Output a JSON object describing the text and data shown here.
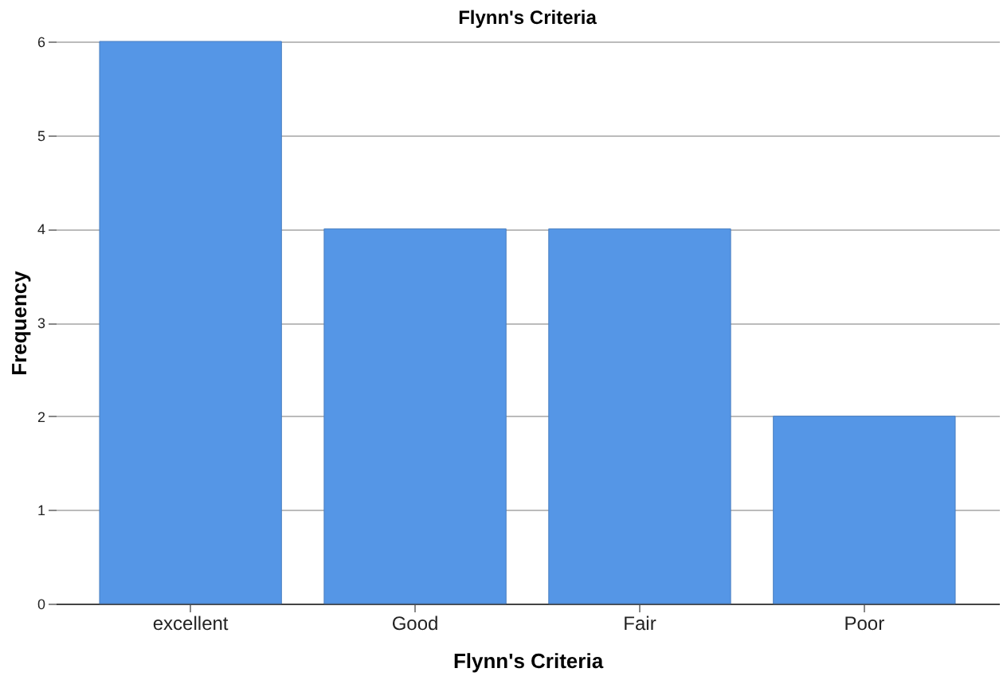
{
  "chart_data": {
    "type": "bar",
    "title": "Flynn's Criteria",
    "xlabel": "Flynn's Criteria",
    "ylabel": "Frequency",
    "categories": [
      "excellent",
      "Good",
      "Fair",
      "Poor"
    ],
    "values": [
      6,
      4,
      4,
      2
    ],
    "color": "#5596e6",
    "ylim": [
      0,
      6
    ],
    "yticks": [
      0,
      1,
      2,
      3,
      4,
      5,
      6
    ],
    "grid": "y"
  }
}
